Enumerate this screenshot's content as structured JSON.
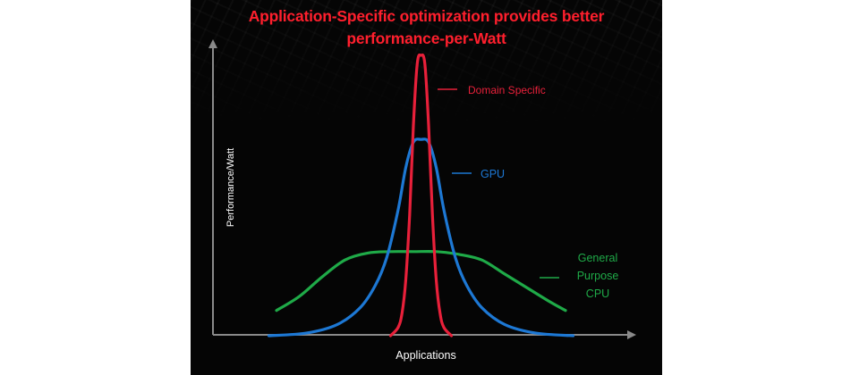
{
  "chart_data": {
    "type": "line",
    "title_lines": [
      "Application-Specific optimization provides better",
      "performance-per-Watt"
    ],
    "xlabel": "Applications",
    "ylabel": "Performance/Watt",
    "x_range": [
      0,
      100
    ],
    "y_range": [
      0,
      100
    ],
    "grid": false,
    "ticks": false,
    "legend_placement": "inline labels at right of curves",
    "series": [
      {
        "name": "Domain Specific",
        "label_lines": [
          "Domain Specific"
        ],
        "color": "#e8203a",
        "x": [
          42,
          44,
          45,
          46,
          47,
          48,
          49,
          50,
          51,
          52,
          53,
          54,
          55,
          56,
          58
        ],
        "y": [
          0,
          3,
          8,
          20,
          43,
          75,
          97,
          100,
          97,
          75,
          43,
          20,
          8,
          3,
          0
        ]
      },
      {
        "name": "GPU",
        "label_lines": [
          "GPU"
        ],
        "color": "#1d78d4",
        "x": [
          10,
          20,
          28,
          34,
          38,
          41,
          44,
          46,
          48,
          50,
          52,
          54,
          56,
          59,
          62,
          66,
          72,
          80,
          90
        ],
        "y": [
          0,
          1,
          4,
          10,
          18,
          28,
          45,
          60,
          69,
          70,
          69,
          60,
          45,
          28,
          18,
          10,
          4,
          1,
          0
        ]
      },
      {
        "name": "General Purpose CPU",
        "label_lines": [
          "General",
          "Purpose",
          "CPU"
        ],
        "color": "#1faa48",
        "x": [
          12,
          18,
          24,
          30,
          36,
          42,
          48,
          54,
          60,
          66,
          72,
          78,
          84,
          88
        ],
        "y": [
          9,
          14,
          21,
          27,
          29.5,
          30,
          30,
          30,
          29,
          27,
          22,
          17,
          12,
          9
        ]
      }
    ]
  }
}
